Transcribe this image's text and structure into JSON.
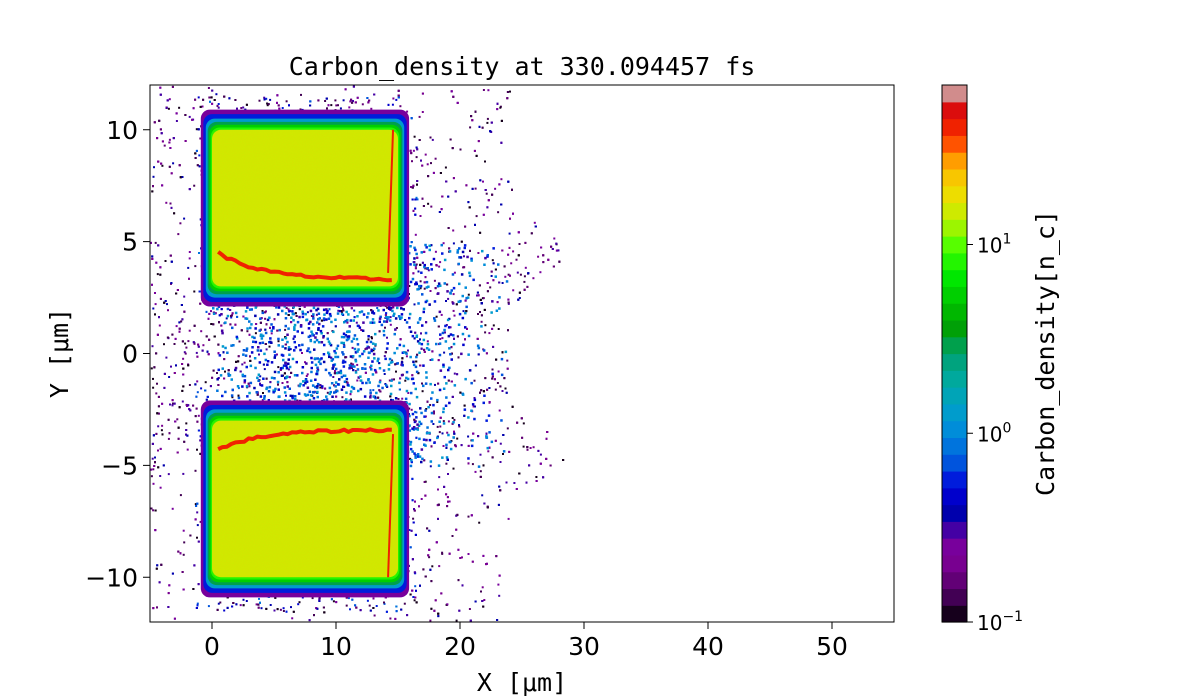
{
  "chart_data": {
    "type": "heatmap",
    "title": "Carbon_density at 330.094457 fs",
    "xlabel": "X [μm]",
    "ylabel": "Y [μm]",
    "xlim": [
      -5,
      55
    ],
    "ylim": [
      -12,
      12
    ],
    "x_ticks": [
      0,
      10,
      20,
      30,
      40,
      50
    ],
    "y_ticks": [
      -10,
      -5,
      0,
      5,
      10
    ],
    "colorbar": {
      "label": "Carbon_density[n_c]",
      "scale": "log",
      "range": [
        0.1,
        70
      ],
      "tick_values": [
        0.1,
        1,
        10
      ],
      "tick_labels": [
        "10^-1",
        "10^0",
        "10^1"
      ]
    },
    "features": [
      {
        "name": "upper block",
        "x_range": [
          0,
          15
        ],
        "y_range": [
          3,
          10
        ],
        "density": 15
      },
      {
        "name": "lower block",
        "x_range": [
          0,
          15
        ],
        "y_range": [
          -10,
          -3
        ],
        "density": 15
      },
      {
        "name": "upper compressed layer",
        "x_range": [
          0.5,
          14.5
        ],
        "y_from": 4.5,
        "y_to": 3.3,
        "density": 45
      },
      {
        "name": "lower compressed layer",
        "x_range": [
          0.5,
          14.5
        ],
        "y_from": -4.3,
        "y_to": -3.4,
        "density": 45
      },
      {
        "name": "central expanding plasma",
        "x_range": [
          -5,
          29
        ],
        "y_range": [
          -5,
          5
        ],
        "density": 0.6
      }
    ]
  }
}
